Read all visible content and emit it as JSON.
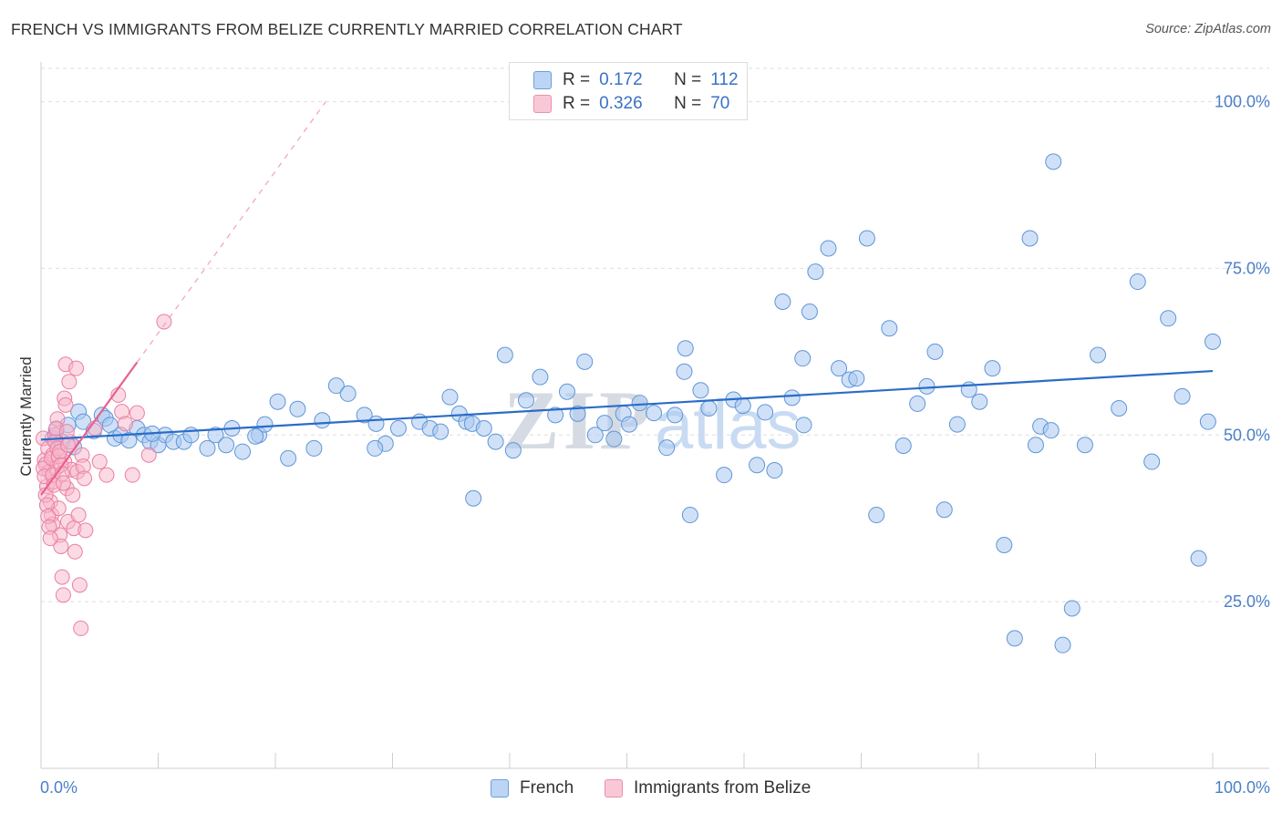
{
  "header": {
    "title": "FRENCH VS IMMIGRANTS FROM BELIZE CURRENTLY MARRIED CORRELATION CHART",
    "source": "Source: ZipAtlas.com"
  },
  "colors": {
    "blue_fill": "#a9c8f0",
    "blue_stroke": "#5f96d8",
    "blue_line": "#2a6cc8",
    "pink_fill": "#f7b6ca",
    "pink_stroke": "#e97fa3",
    "pink_line": "#e8608e",
    "label_blue": "#4a7fc9",
    "grid": "#dedede"
  },
  "legend": {
    "r_label": "R =",
    "n_label": "N =",
    "series": [
      {
        "r": "0.172",
        "n": "112"
      },
      {
        "r": "0.326",
        "n": "70"
      }
    ]
  },
  "watermark": {
    "zip": "ZIP",
    "atlas": "atlas"
  },
  "chart_data": {
    "type": "scatter",
    "title": "FRENCH VS IMMIGRANTS FROM BELIZE CURRENTLY MARRIED CORRELATION CHART",
    "xlabel": "",
    "ylabel": "Currently Married",
    "xlim": [
      0,
      100
    ],
    "ylim": [
      0,
      105
    ],
    "x_tick_labels": [
      "0.0%",
      "100.0%"
    ],
    "y_ticks": [
      25,
      50,
      75,
      100
    ],
    "y_tick_labels": [
      "25.0%",
      "50.0%",
      "75.0%",
      "100.0%"
    ],
    "grid": true,
    "legend_position": "top-center",
    "series": [
      {
        "name": "French",
        "r": 0.172,
        "n": 112,
        "trend": {
          "x0": 0,
          "y0": 49.3,
          "x1": 100,
          "y1": 59.6
        },
        "points": [
          [
            1.0,
            49.5
          ],
          [
            1.3,
            50.8
          ],
          [
            1.8,
            49.0
          ],
          [
            2.3,
            51.5
          ],
          [
            2.8,
            48.2
          ],
          [
            3.2,
            53.5
          ],
          [
            3.6,
            52.0
          ],
          [
            4.5,
            50.6
          ],
          [
            5.2,
            53.0
          ],
          [
            5.5,
            52.5
          ],
          [
            5.9,
            51.5
          ],
          [
            6.3,
            49.5
          ],
          [
            6.8,
            50.0
          ],
          [
            7.5,
            49.2
          ],
          [
            8.2,
            51.0
          ],
          [
            8.8,
            50.0
          ],
          [
            9.3,
            49.0
          ],
          [
            10.0,
            48.5
          ],
          [
            10.6,
            50.0
          ],
          [
            11.3,
            49.0
          ],
          [
            12.2,
            49.0
          ],
          [
            12.8,
            50.0
          ],
          [
            14.2,
            48.0
          ],
          [
            14.9,
            50.0
          ],
          [
            15.8,
            48.5
          ],
          [
            16.3,
            51.0
          ],
          [
            17.2,
            47.5
          ],
          [
            18.6,
            50.0
          ],
          [
            19.1,
            51.6
          ],
          [
            20.2,
            55.0
          ],
          [
            21.1,
            46.5
          ],
          [
            21.9,
            53.9
          ],
          [
            23.3,
            48.0
          ],
          [
            24.0,
            52.2
          ],
          [
            25.2,
            57.4
          ],
          [
            26.2,
            56.2
          ],
          [
            27.6,
            53.0
          ],
          [
            28.6,
            51.7
          ],
          [
            29.4,
            48.7
          ],
          [
            30.5,
            51.0
          ],
          [
            32.3,
            52.0
          ],
          [
            33.2,
            51.0
          ],
          [
            34.1,
            50.5
          ],
          [
            34.9,
            55.7
          ],
          [
            35.7,
            53.2
          ],
          [
            36.3,
            52.0
          ],
          [
            36.8,
            51.7
          ],
          [
            37.8,
            51.0
          ],
          [
            38.8,
            49.0
          ],
          [
            39.6,
            62.0
          ],
          [
            40.3,
            47.7
          ],
          [
            41.4,
            55.2
          ],
          [
            42.6,
            58.7
          ],
          [
            43.9,
            53.0
          ],
          [
            44.9,
            56.5
          ],
          [
            45.8,
            53.2
          ],
          [
            46.4,
            61.0
          ],
          [
            47.3,
            50.0
          ],
          [
            48.1,
            51.8
          ],
          [
            48.9,
            49.4
          ],
          [
            49.7,
            53.2
          ],
          [
            50.2,
            51.6
          ],
          [
            51.1,
            54.8
          ],
          [
            52.3,
            53.3
          ],
          [
            53.4,
            48.1
          ],
          [
            54.1,
            53.0
          ],
          [
            54.9,
            59.5
          ],
          [
            55.4,
            38.0
          ],
          [
            56.3,
            56.7
          ],
          [
            57.0,
            54.0
          ],
          [
            58.3,
            44.0
          ],
          [
            59.1,
            55.3
          ],
          [
            59.9,
            54.4
          ],
          [
            61.1,
            45.5
          ],
          [
            61.8,
            53.4
          ],
          [
            62.6,
            44.7
          ],
          [
            63.3,
            70.0
          ],
          [
            64.1,
            55.6
          ],
          [
            65.0,
            61.5
          ],
          [
            65.6,
            68.5
          ],
          [
            66.1,
            74.5
          ],
          [
            67.2,
            78.0
          ],
          [
            68.1,
            60.0
          ],
          [
            69.0,
            58.3
          ],
          [
            69.6,
            58.5
          ],
          [
            70.5,
            79.5
          ],
          [
            71.3,
            38.0
          ],
          [
            72.4,
            66.0
          ],
          [
            73.6,
            48.4
          ],
          [
            74.8,
            54.7
          ],
          [
            75.6,
            57.3
          ],
          [
            76.3,
            62.5
          ],
          [
            77.1,
            38.8
          ],
          [
            78.2,
            51.6
          ],
          [
            79.2,
            56.8
          ],
          [
            80.1,
            55.0
          ],
          [
            81.2,
            60.0
          ],
          [
            82.2,
            33.5
          ],
          [
            83.1,
            19.5
          ],
          [
            84.4,
            79.5
          ],
          [
            85.3,
            51.3
          ],
          [
            86.2,
            50.7
          ],
          [
            87.2,
            18.5
          ],
          [
            88.0,
            24.0
          ],
          [
            89.1,
            48.5
          ],
          [
            90.2,
            62.0
          ],
          [
            92.0,
            54.0
          ],
          [
            93.6,
            73.0
          ],
          [
            94.8,
            46.0
          ],
          [
            96.2,
            67.5
          ],
          [
            97.4,
            55.8
          ],
          [
            98.8,
            31.5
          ],
          [
            99.6,
            52.0
          ],
          [
            100.0,
            64.0
          ],
          [
            86.4,
            91.0
          ],
          [
            84.9,
            48.5
          ],
          [
            65.1,
            51.5
          ],
          [
            55.0,
            63.0
          ],
          [
            36.9,
            40.5
          ],
          [
            28.5,
            48.0
          ],
          [
            18.3,
            49.8
          ],
          [
            9.5,
            50.2
          ]
        ]
      },
      {
        "name": "Immigrants from Belize",
        "r": 0.326,
        "n": 70,
        "trend": {
          "x0": 0,
          "y0": 41.0,
          "x1": 24.3,
          "y1": 100.0
        },
        "trend_solid_until_x": 8.2,
        "points": [
          [
            0.2,
            49.5
          ],
          [
            0.3,
            46.2
          ],
          [
            0.4,
            45.6
          ],
          [
            0.5,
            42.3
          ],
          [
            0.6,
            48.0
          ],
          [
            0.7,
            44.5
          ],
          [
            0.8,
            40.0
          ],
          [
            0.9,
            38.0
          ],
          [
            1.0,
            36.6
          ],
          [
            1.0,
            47.0
          ],
          [
            1.1,
            43.0
          ],
          [
            1.2,
            50.0
          ],
          [
            1.3,
            45.0
          ],
          [
            1.4,
            52.4
          ],
          [
            1.5,
            39.0
          ],
          [
            1.6,
            35.0
          ],
          [
            1.7,
            33.3
          ],
          [
            1.8,
            28.7
          ],
          [
            1.9,
            26.0
          ],
          [
            2.0,
            46.0
          ],
          [
            2.1,
            60.6
          ],
          [
            2.2,
            42.0
          ],
          [
            2.3,
            37.0
          ],
          [
            2.4,
            58.0
          ],
          [
            2.5,
            49.0
          ],
          [
            2.6,
            44.8
          ],
          [
            2.7,
            41.0
          ],
          [
            2.8,
            36.0
          ],
          [
            2.9,
            32.5
          ],
          [
            3.0,
            60.0
          ],
          [
            3.1,
            44.5
          ],
          [
            3.2,
            38.0
          ],
          [
            3.3,
            27.5
          ],
          [
            3.4,
            21.0
          ],
          [
            3.5,
            47.0
          ],
          [
            3.6,
            45.3
          ],
          [
            3.7,
            43.5
          ],
          [
            3.8,
            35.7
          ],
          [
            0.2,
            45.0
          ],
          [
            0.3,
            43.8
          ],
          [
            0.4,
            41.0
          ],
          [
            0.5,
            39.5
          ],
          [
            0.6,
            37.8
          ],
          [
            0.7,
            36.2
          ],
          [
            0.8,
            34.5
          ],
          [
            0.9,
            46.5
          ],
          [
            1.0,
            44.0
          ],
          [
            1.1,
            42.5
          ],
          [
            1.2,
            49.0
          ],
          [
            1.3,
            51.0
          ],
          [
            1.4,
            48.0
          ],
          [
            1.5,
            46.8
          ],
          [
            1.6,
            47.5
          ],
          [
            1.7,
            45.5
          ],
          [
            1.8,
            44.2
          ],
          [
            1.9,
            42.8
          ],
          [
            2.0,
            55.5
          ],
          [
            2.1,
            54.5
          ],
          [
            2.2,
            50.5
          ],
          [
            2.3,
            48.5
          ],
          [
            4.6,
            51.0
          ],
          [
            5.0,
            46.0
          ],
          [
            5.6,
            44.0
          ],
          [
            6.6,
            56.0
          ],
          [
            6.9,
            53.5
          ],
          [
            7.2,
            51.7
          ],
          [
            7.8,
            44.0
          ],
          [
            8.2,
            53.3
          ],
          [
            9.2,
            47.0
          ],
          [
            10.5,
            67.0
          ]
        ]
      }
    ]
  },
  "bottom_legend": {
    "items": [
      {
        "label": "French"
      },
      {
        "label": "Immigrants from Belize"
      }
    ]
  }
}
